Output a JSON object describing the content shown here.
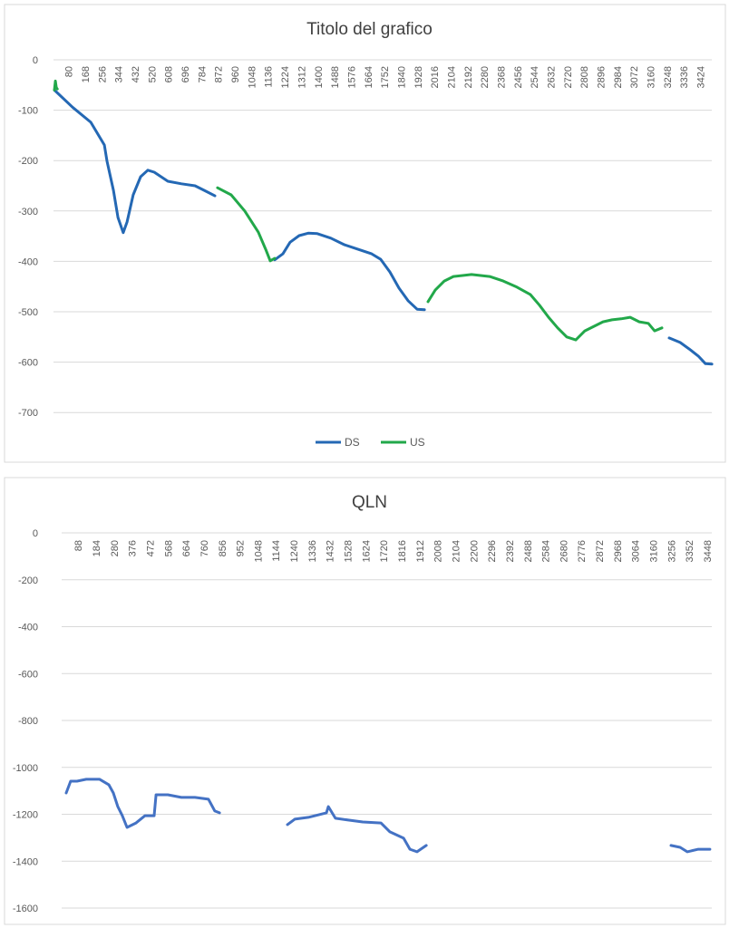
{
  "chart_data": [
    {
      "type": "line",
      "title": "Titolo del grafico",
      "xlabel": "",
      "ylabel": "",
      "xlim": [
        0,
        3490
      ],
      "ylim": [
        -800,
        0
      ],
      "yticks": [
        0,
        -100,
        -200,
        -300,
        -400,
        -500,
        -600,
        -700
      ],
      "xticks": [
        80,
        168,
        256,
        344,
        432,
        520,
        608,
        696,
        784,
        872,
        960,
        1048,
        1136,
        1224,
        1312,
        1400,
        1488,
        1576,
        1664,
        1752,
        1840,
        1928,
        2016,
        2104,
        2192,
        2280,
        2368,
        2456,
        2544,
        2632,
        2720,
        2808,
        2896,
        2984,
        3072,
        3160,
        3248,
        3336,
        3424
      ],
      "grid": true,
      "legend": "bottom",
      "series": [
        {
          "name": "DS",
          "color": "#2468b4",
          "segments": [
            [
              [
                5,
                -60
              ],
              [
                101,
                -94
              ],
              [
                197,
                -124
              ],
              [
                269,
                -169
              ],
              [
                283,
                -201
              ],
              [
                317,
                -259
              ],
              [
                341,
                -313
              ],
              [
                369,
                -343
              ],
              [
                389,
                -322
              ],
              [
                422,
                -268
              ],
              [
                461,
                -232
              ],
              [
                499,
                -219
              ],
              [
                533,
                -223
              ],
              [
                605,
                -241
              ],
              [
                677,
                -246
              ],
              [
                749,
                -250
              ],
              [
                797,
                -259
              ],
              [
                854,
                -270
              ]
            ],
            [
              [
                1171,
                -397
              ],
              [
                1214,
                -385
              ],
              [
                1252,
                -362
              ],
              [
                1300,
                -349
              ],
              [
                1348,
                -344
              ],
              [
                1396,
                -345
              ],
              [
                1468,
                -354
              ],
              [
                1540,
                -367
              ],
              [
                1612,
                -376
              ],
              [
                1684,
                -385
              ],
              [
                1732,
                -396
              ],
              [
                1780,
                -421
              ],
              [
                1828,
                -453
              ],
              [
                1876,
                -478
              ],
              [
                1924,
                -495
              ],
              [
                1963,
                -496
              ]
            ],
            [
              [
                3258,
                -552
              ],
              [
                3316,
                -561
              ],
              [
                3364,
                -574
              ],
              [
                3412,
                -588
              ],
              [
                3450,
                -603
              ],
              [
                3484,
                -604
              ]
            ]
          ]
        },
        {
          "name": "US",
          "color": "#22a84a",
          "segments": [
            [
              [
                5,
                -60
              ],
              [
                10,
                -42
              ],
              [
                15,
                -55
              ],
              [
                20,
                -58
              ]
            ],
            [
              [
                868,
                -254
              ],
              [
                940,
                -268
              ],
              [
                1012,
                -300
              ],
              [
                1084,
                -342
              ],
              [
                1123,
                -376
              ],
              [
                1147,
                -399
              ],
              [
                1171,
                -394
              ]
            ],
            [
              [
                1982,
                -480
              ],
              [
                2020,
                -457
              ],
              [
                2068,
                -439
              ],
              [
                2116,
                -430
              ],
              [
                2212,
                -426
              ],
              [
                2308,
                -430
              ],
              [
                2380,
                -439
              ],
              [
                2452,
                -451
              ],
              [
                2524,
                -466
              ],
              [
                2572,
                -487
              ],
              [
                2620,
                -511
              ],
              [
                2668,
                -532
              ],
              [
                2716,
                -550
              ],
              [
                2764,
                -556
              ],
              [
                2812,
                -538
              ],
              [
                2860,
                -529
              ],
              [
                2908,
                -520
              ],
              [
                2956,
                -516
              ],
              [
                3004,
                -514
              ],
              [
                3052,
                -511
              ],
              [
                3100,
                -520
              ],
              [
                3148,
                -523
              ],
              [
                3181,
                -538
              ],
              [
                3220,
                -532
              ]
            ]
          ]
        }
      ]
    },
    {
      "type": "line",
      "title": "QLN",
      "xlabel": "",
      "ylabel": "",
      "xlim": [
        0,
        3500
      ],
      "ylim": [
        -1600,
        0
      ],
      "yticks": [
        0,
        -200,
        -400,
        -600,
        -800,
        -1000,
        -1200,
        -1400,
        -1600
      ],
      "xticks": [
        88,
        184,
        280,
        376,
        472,
        568,
        664,
        760,
        856,
        952,
        1048,
        1144,
        1240,
        1336,
        1432,
        1528,
        1624,
        1720,
        1816,
        1912,
        2008,
        2104,
        2200,
        2296,
        2392,
        2488,
        2584,
        2680,
        2776,
        2872,
        2968,
        3064,
        3160,
        3256,
        3352,
        3448
      ],
      "grid": true,
      "legend": "none",
      "series": [
        {
          "name": "QLN",
          "color": "#4472c4",
          "segments": [
            [
              [
                24,
                -1109
              ],
              [
                48,
                -1059
              ],
              [
                82,
                -1059
              ],
              [
                131,
                -1051
              ],
              [
                203,
                -1051
              ],
              [
                252,
                -1074
              ],
              [
                276,
                -1109
              ],
              [
                300,
                -1167
              ],
              [
                324,
                -1206
              ],
              [
                349,
                -1256
              ],
              [
                397,
                -1237
              ],
              [
                445,
                -1206
              ],
              [
                494,
                -1206
              ],
              [
                504,
                -1117
              ],
              [
                567,
                -1117
              ],
              [
                639,
                -1128
              ],
              [
                712,
                -1128
              ],
              [
                784,
                -1136
              ],
              [
                818,
                -1186
              ],
              [
                843,
                -1194
              ]
            ],
            [
              [
                1206,
                -1244
              ],
              [
                1245,
                -1221
              ],
              [
                1317,
                -1213
              ],
              [
                1414,
                -1194
              ],
              [
                1424,
                -1167
              ],
              [
                1462,
                -1217
              ],
              [
                1535,
                -1225
              ],
              [
                1608,
                -1233
              ],
              [
                1705,
                -1237
              ],
              [
                1753,
                -1275
              ],
              [
                1826,
                -1302
              ],
              [
                1860,
                -1349
              ],
              [
                1898,
                -1360
              ],
              [
                1947,
                -1333
              ]
            ],
            [
              [
                3254,
                -1333
              ],
              [
                3303,
                -1341
              ],
              [
                3341,
                -1360
              ],
              [
                3400,
                -1349
              ],
              [
                3462,
                -1349
              ]
            ]
          ]
        }
      ]
    }
  ]
}
